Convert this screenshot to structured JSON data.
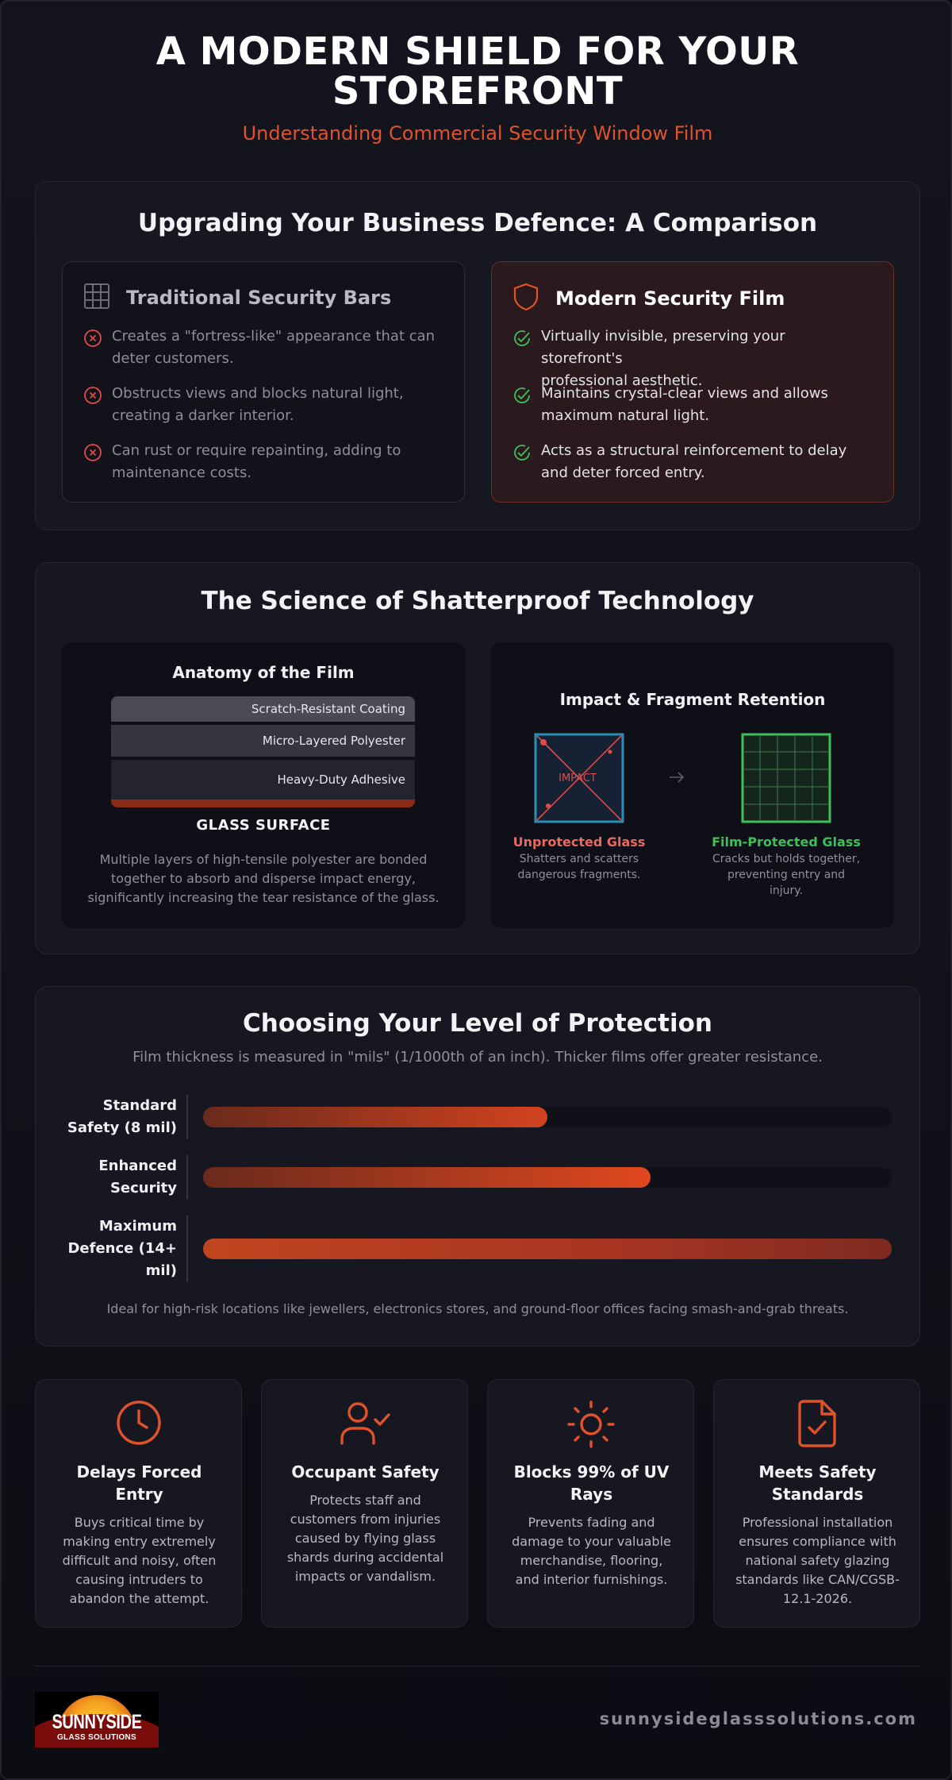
{
  "hero": {
    "title_line1": "A MODERN SHIELD FOR YOUR",
    "title_line2": "STOREFRONT",
    "subtitle": "Understanding Commercial Security Window Film"
  },
  "comparison": {
    "title": "Upgrading Your Business Defence: A Comparison",
    "traditional": {
      "icon": "grid-bars-icon",
      "title": "Traditional Security Bars",
      "items": [
        {
          "icon": "x-circle-icon",
          "line1": "Creates a \"fortress-like\" appearance that can",
          "line2": "deter customers."
        },
        {
          "icon": "x-circle-icon",
          "line1": "Obstructs views and blocks natural light,",
          "line2": "creating a darker interior."
        },
        {
          "icon": "x-circle-icon",
          "line1": "Can rust or require repainting, adding to",
          "line2": "maintenance costs."
        }
      ]
    },
    "modern": {
      "icon": "shield-icon",
      "title": "Modern Security Film",
      "items": [
        {
          "icon": "check-circle-icon",
          "line1": "Virtually invisible, preserving your storefront's",
          "line2": "professional aesthetic."
        },
        {
          "icon": "check-circle-icon",
          "line1": "Maintains crystal-clear views and allows",
          "line2": "maximum natural light."
        },
        {
          "icon": "check-circle-icon",
          "line1": "Acts as a structural reinforcement to delay",
          "line2": "and deter forced entry."
        }
      ]
    }
  },
  "science": {
    "title": "The Science of Shatterproof Technology",
    "anatomy": {
      "title": "Anatomy of the Film",
      "layers": [
        "Scratch-Resistant Coating",
        "Micro-Layered Polyester",
        "Heavy-Duty Adhesive"
      ],
      "glass_label": "GLASS SURFACE",
      "desc_line1": "Multiple layers of high-tensile polyester are bonded",
      "desc_line2": "together to absorb and disperse impact energy,",
      "desc_line3": "significantly increasing the tear resistance of the glass."
    },
    "impact": {
      "title": "Impact & Fragment Retention",
      "impact_label": "IMPACT",
      "unprotected": {
        "title": "Unprotected Glass",
        "desc_line1": "Shatters and scatters",
        "desc_line2": "dangerous fragments."
      },
      "protected": {
        "title": "Film-Protected Glass",
        "desc_line1": "Cracks but holds together,",
        "desc_line2": "preventing entry and injury."
      }
    }
  },
  "protection": {
    "title": "Choosing Your Level of Protection",
    "subtitle": "Film thickness is measured in \"mils\" (1/1000th of an inch). Thicker films offer greater resistance.",
    "levels": [
      {
        "line1": "Standard",
        "line2": "Safety (8 mil)",
        "line3": "",
        "fill_fraction": 0.5
      },
      {
        "line1": "Enhanced",
        "line2": "Security",
        "line3": "",
        "fill_fraction": 0.65
      },
      {
        "line1": "Maximum",
        "line2": "Defence (14+",
        "line3": "mil)",
        "fill_fraction": 1.0
      }
    ],
    "note": "Ideal for high-risk locations like jewellers, electronics stores, and ground-floor offices facing smash-and-grab threats."
  },
  "features": [
    {
      "icon": "clock-icon",
      "title_line1": "Delays Forced",
      "title_line2": "Entry",
      "desc": [
        "Buys critical time by",
        "making entry extremely",
        "difficult and noisy, often",
        "causing intruders to",
        "abandon the attempt."
      ]
    },
    {
      "icon": "user-check-icon",
      "title_line1": "Occupant Safety",
      "title_line2": "",
      "desc": [
        "Protects staff and",
        "customers from injuries",
        "caused by flying glass",
        "shards during accidental",
        "impacts or vandalism."
      ]
    },
    {
      "icon": "sun-icon",
      "title_line1": "Blocks 99% of UV",
      "title_line2": "Rays",
      "desc": [
        "Prevents fading and",
        "damage to your valuable",
        "merchandise, flooring,",
        "and interior furnishings."
      ]
    },
    {
      "icon": "file-check-icon",
      "title_line1": "Meets Safety",
      "title_line2": "Standards",
      "desc": [
        "Professional installation",
        "ensures compliance with",
        "national safety glazing",
        "standards like CAN/CGSB-",
        "12.1-2026."
      ]
    }
  ],
  "footer": {
    "logo_name": "SUNNYSIDE",
    "logo_tag": "GLASS SOLUTIONS",
    "website": "sunnysideglasssolutions.com"
  },
  "colors": {
    "accent": "#e0522a",
    "negative": "#e24a4a",
    "positive": "#3fbf5a",
    "impact_blue": "#2a8fb5"
  }
}
